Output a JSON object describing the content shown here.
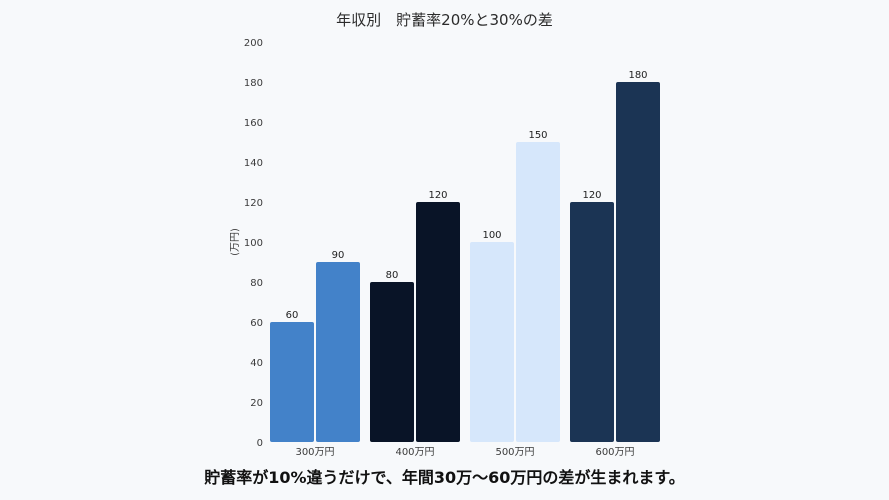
{
  "chart_data": {
    "type": "bar",
    "title": "年収別　貯蓄率20%と30%の差",
    "ylabel": "(万円)",
    "xlabel": "",
    "categories": [
      "300万円",
      "400万円",
      "500万円",
      "600万円"
    ],
    "ylim": [
      0,
      200
    ],
    "yticks": [
      0,
      20,
      40,
      60,
      80,
      100,
      120,
      140,
      160,
      180,
      200
    ],
    "series": [
      {
        "values": [
          60,
          80,
          100,
          120
        ]
      },
      {
        "values": [
          90,
          120,
          150,
          180
        ]
      }
    ],
    "colors_by_category": [
      [
        "#4382c9",
        "#4382c9"
      ],
      [
        "#091427",
        "#091427"
      ],
      [
        "#d6e7fb",
        "#d6e7fb"
      ],
      [
        "#1b3454",
        "#1b3454"
      ]
    ],
    "grid": false,
    "legend": "none"
  },
  "caption": "貯蓄率が10%違うだけで、年間30万〜60万円の差が生まれます。"
}
